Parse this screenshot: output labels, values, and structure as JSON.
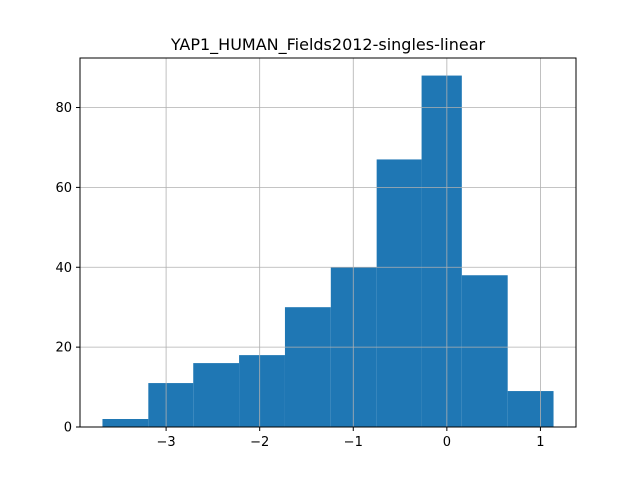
{
  "chart_data": {
    "type": "bar",
    "title": "YAP1_HUMAN_Fields2012-singles-linear",
    "xlabel": "",
    "ylabel": "",
    "bin_edges": [
      -3.68,
      -3.19,
      -2.71,
      -2.22,
      -1.73,
      -1.24,
      -0.75,
      -0.27,
      0.16,
      0.65,
      1.14
    ],
    "values": [
      2,
      11,
      16,
      18,
      30,
      40,
      67,
      88,
      38,
      9
    ],
    "xlim": [
      -3.92,
      1.38
    ],
    "ylim": [
      0,
      92.4
    ],
    "x_ticks": [
      -3,
      -2,
      -1,
      0,
      1
    ],
    "x_tick_labels": [
      "−3",
      "−2",
      "−1",
      "0",
      "1"
    ],
    "y_ticks": [
      0,
      20,
      40,
      60,
      80
    ],
    "y_tick_labels": [
      "0",
      "20",
      "40",
      "60",
      "80"
    ],
    "grid": true,
    "bar_color": "#1f77b4",
    "grid_color": "#b0b0b0"
  }
}
